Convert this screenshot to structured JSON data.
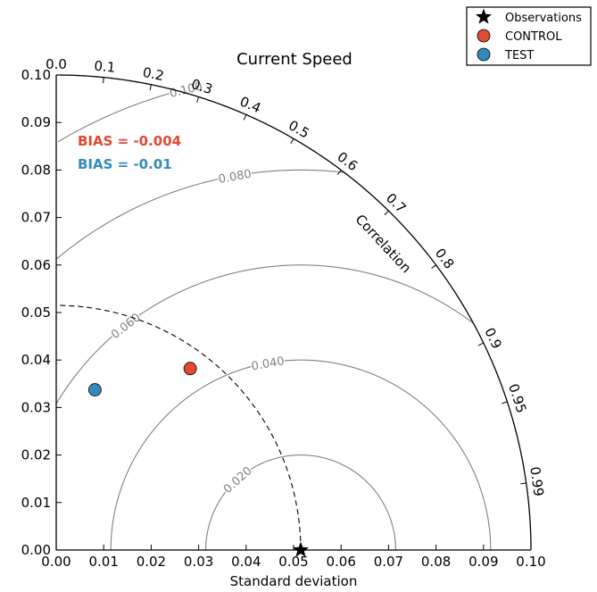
{
  "chart_data": {
    "type": "scatter",
    "subtype": "taylor-diagram",
    "title": "Current Speed",
    "xlabel": "Standard deviation",
    "ylabel": "",
    "arc_label": "Correlation",
    "xlim": [
      0.0,
      0.1
    ],
    "ylim": [
      0.0,
      0.1
    ],
    "x_ticks": [
      "0.00",
      "0.01",
      "0.02",
      "0.03",
      "0.04",
      "0.05",
      "0.06",
      "0.07",
      "0.08",
      "0.09",
      "0.10"
    ],
    "y_ticks": [
      "0.00",
      "0.01",
      "0.02",
      "0.03",
      "0.04",
      "0.05",
      "0.06",
      "0.07",
      "0.08",
      "0.09",
      "0.10"
    ],
    "correlation_ticks": [
      "0.0",
      "0.1",
      "0.2",
      "0.3",
      "0.4",
      "0.5",
      "0.6",
      "0.7",
      "0.8",
      "0.9",
      "0.95",
      "0.99"
    ],
    "reference_std": 0.0515,
    "rms_contours": [
      0.02,
      0.04,
      0.06,
      0.08,
      0.1
    ],
    "rms_labels": [
      {
        "value": 0.02,
        "text": "0.020"
      },
      {
        "value": 0.04,
        "text": "0.040"
      },
      {
        "value": 0.06,
        "text": "0.060"
      },
      {
        "value": 0.08,
        "text": "0.080"
      },
      {
        "value": 0.1,
        "text": "0.100"
      }
    ],
    "series": [
      {
        "name": "Observations",
        "marker": "star",
        "color": "#000000",
        "std": 0.0515,
        "correlation": 1.0
      },
      {
        "name": "CONTROL",
        "marker": "circle",
        "color": "#e24a33",
        "std": 0.0475,
        "correlation": 0.594,
        "bias_text": "BIAS = -0.004"
      },
      {
        "name": "TEST",
        "marker": "circle",
        "color": "#348abd",
        "std": 0.0347,
        "correlation": 0.235,
        "bias_text": "BIAS = -0.01"
      }
    ],
    "legend_position": "top-right",
    "grid": false
  }
}
